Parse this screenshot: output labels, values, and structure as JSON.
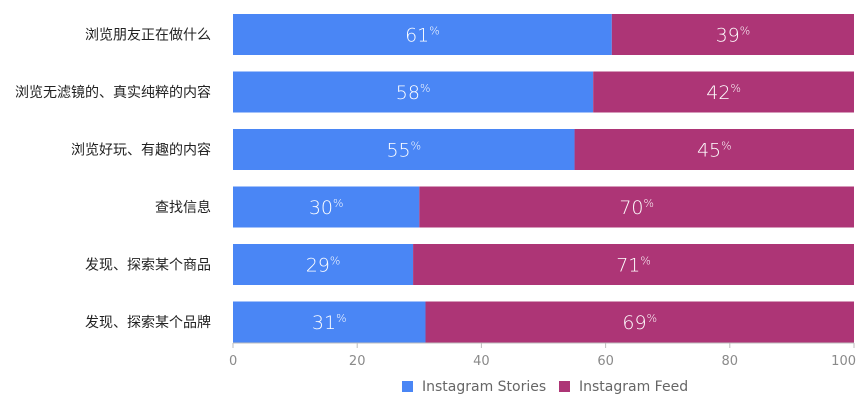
{
  "chart_data": {
    "type": "bar",
    "orientation": "horizontal",
    "stacked": true,
    "categories": [
      "浏览朋友正在做什么",
      "浏览无滤镜的、真实纯粹的内容",
      "浏览好玩、有趣的内容",
      "查找信息",
      "发现、探索某个商品",
      "发现、探索某个品牌"
    ],
    "series": [
      {
        "name": "Instagram Stories",
        "values": [
          61,
          58,
          55,
          30,
          29,
          31
        ],
        "color": "#4a86f5"
      },
      {
        "name": "Instagram Feed",
        "values": [
          39,
          42,
          45,
          70,
          71,
          69
        ],
        "color": "#ad3576"
      }
    ],
    "value_suffix": "%",
    "x_ticks": [
      "0",
      "20",
      "40",
      "60",
      "80",
      "100"
    ],
    "xlim": [
      0,
      100
    ],
    "legend_position": "bottom-center",
    "grid": false
  }
}
